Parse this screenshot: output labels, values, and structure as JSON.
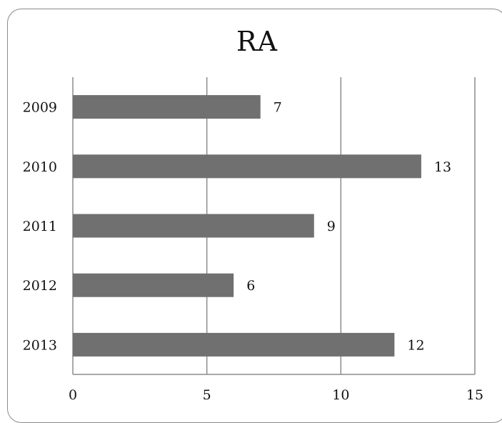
{
  "chart_data": {
    "type": "bar",
    "orientation": "horizontal",
    "title": "RA",
    "categories": [
      "2009",
      "2010",
      "2011",
      "2012",
      "2013"
    ],
    "values": [
      7,
      13,
      9,
      6,
      12
    ],
    "xlim": [
      0,
      15
    ],
    "x_ticks": [
      0,
      5,
      10,
      15
    ],
    "data_labels": [
      "7",
      "13",
      "9",
      "6",
      "12"
    ],
    "grid": "vertical",
    "legend": "none",
    "colors": {
      "bar": "#707070",
      "grid": "#8c8c8c",
      "frame": "#8a8a8a",
      "text": "#111111"
    }
  }
}
